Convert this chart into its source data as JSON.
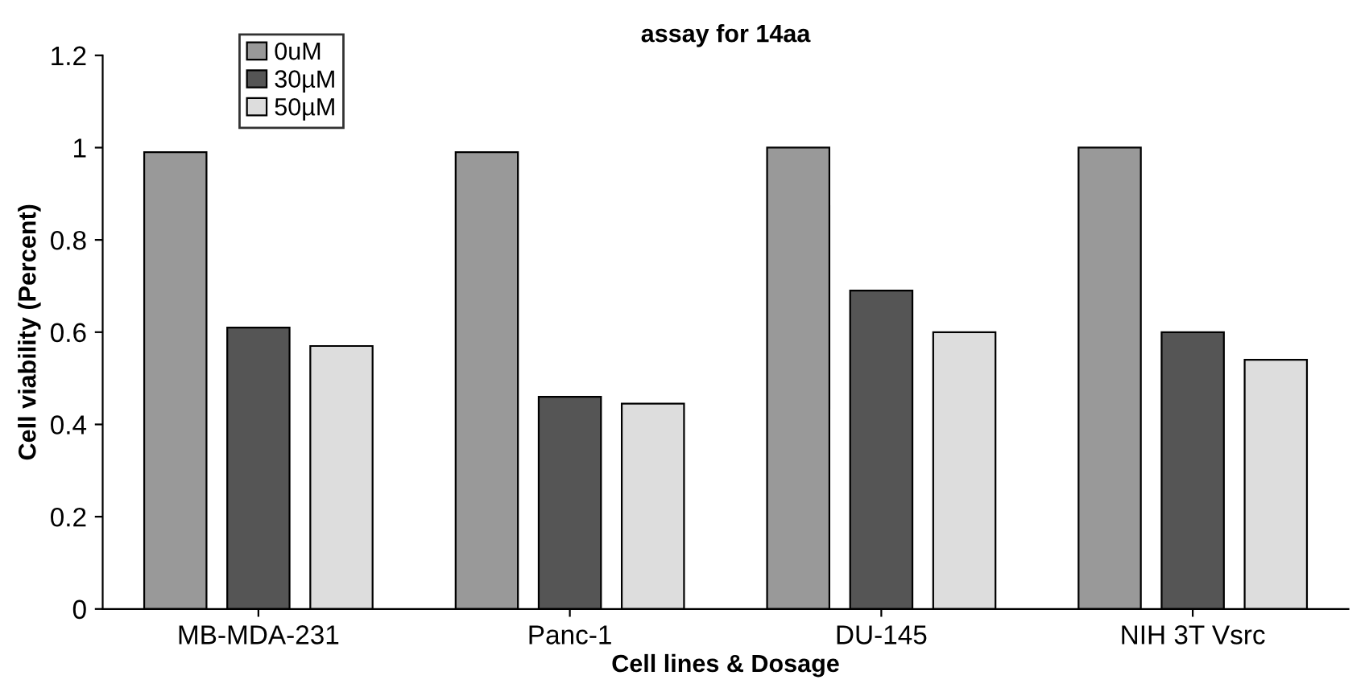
{
  "chart_data": {
    "type": "bar",
    "title": "assay for 14aa",
    "xlabel": "Cell lines & Dosage",
    "ylabel": "Cell viability (Percent)",
    "categories": [
      "MB-MDA-231",
      "Panc-1",
      "DU-145",
      "NIH 3T Vsrc"
    ],
    "series": [
      {
        "name": "0uM",
        "color": "#999999",
        "values": [
          0.99,
          0.99,
          1.0,
          1.0
        ]
      },
      {
        "name": "30µM",
        "color": "#555555",
        "values": [
          0.61,
          0.46,
          0.69,
          0.6
        ]
      },
      {
        "name": "50µM",
        "color": "#dddddd",
        "values": [
          0.57,
          0.445,
          0.6,
          0.54
        ]
      }
    ],
    "ylim": [
      0,
      1.2
    ],
    "yticks": [
      0,
      0.2,
      0.4,
      0.6,
      0.8,
      1,
      1.2
    ],
    "grid": false,
    "legend": "top left"
  }
}
